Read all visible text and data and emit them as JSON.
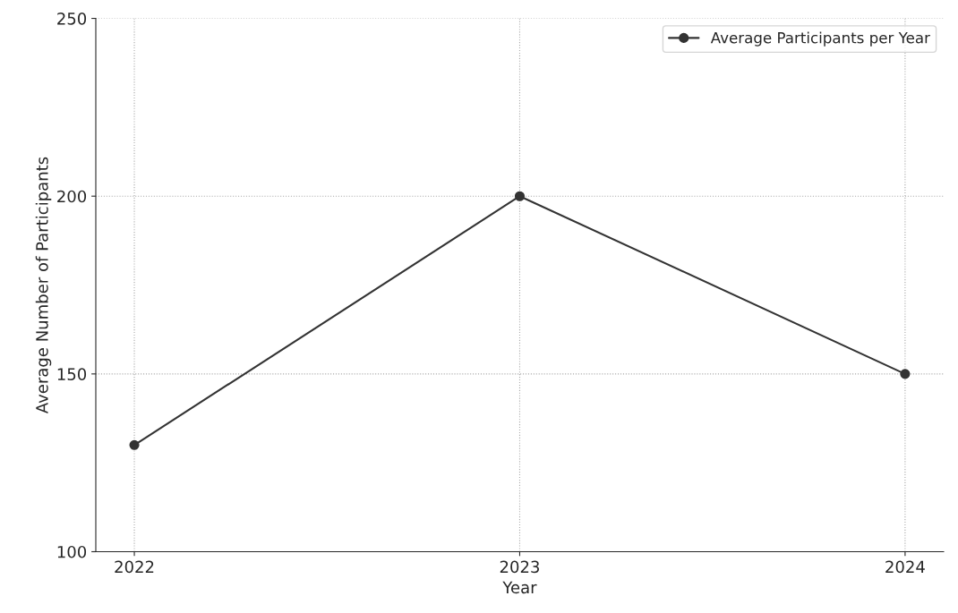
{
  "chart_data": {
    "type": "line",
    "xlabel": "Year",
    "ylabel": "Average Number of Participants",
    "x": [
      2022,
      2023,
      2024
    ],
    "series": [
      {
        "name": "Average Participants per Year",
        "color": "#333333",
        "values": [
          130,
          200,
          150
        ]
      }
    ],
    "xlim": [
      2021.9,
      2024.1
    ],
    "xticks": [
      2022,
      2023,
      2024
    ],
    "ylim": [
      100,
      250
    ],
    "yticks": [
      100,
      150,
      200,
      250
    ],
    "grid": true,
    "legend": "top right",
    "marker": "circle"
  }
}
